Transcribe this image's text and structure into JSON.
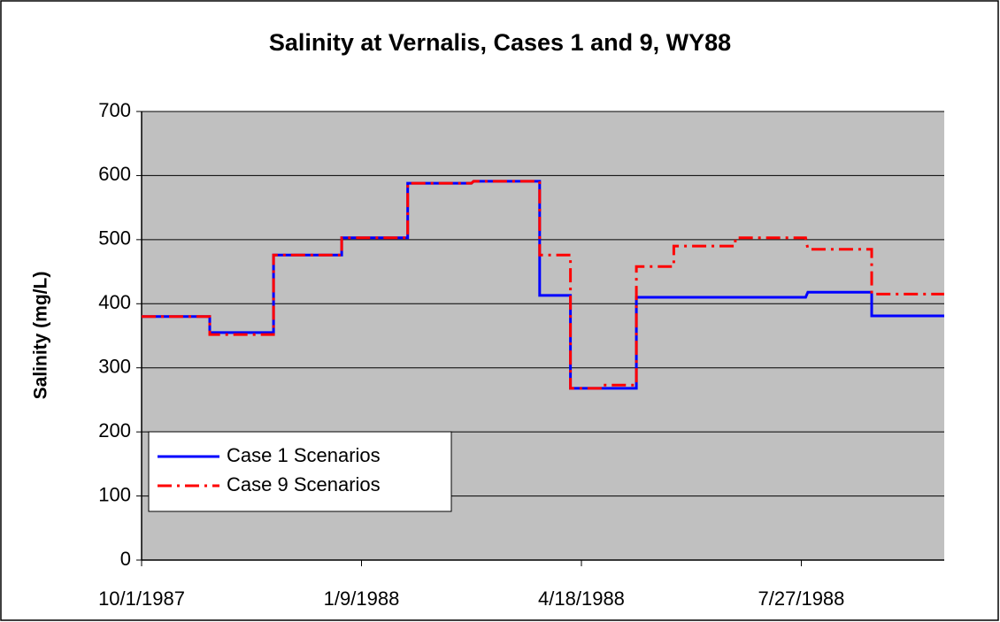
{
  "chart_data": {
    "type": "line",
    "title": "Salinity at Vernalis, Cases 1 and 9, WY88",
    "y_label": "Salinity (mg/L)",
    "xlim": [
      "10/1/1987",
      "9/30/1988"
    ],
    "xticks": [
      "10/1/1987",
      "1/9/1988",
      "4/18/1988",
      "7/27/1988"
    ],
    "ylim": [
      0,
      700
    ],
    "yticks": [
      0,
      100,
      200,
      300,
      400,
      500,
      600,
      700
    ],
    "grid": true,
    "plot_background": "#c0c0c0",
    "legend": "lower left",
    "series": [
      {
        "name": "Case 1 Scenarios",
        "color": "#0000ff",
        "dash": "solid",
        "x": [
          "10/1/1987",
          "11/1/1987",
          "11/1/1987",
          "11/30/1987",
          "11/30/1987",
          "12/31/1987",
          "12/31/1987",
          "1/30/1988",
          "1/30/1988",
          "2/28/1988",
          "2/29/1988",
          "3/30/1988",
          "3/30/1988",
          "4/13/1988",
          "4/13/1988",
          "5/13/1988",
          "5/13/1988",
          "7/29/1988",
          "7/30/1988",
          "8/28/1988",
          "8/28/1988",
          "9/30/1988"
        ],
        "values": [
          380,
          380,
          355,
          355,
          476,
          476,
          503,
          503,
          588,
          588,
          591,
          591,
          413,
          413,
          268,
          268,
          410,
          410,
          418,
          418,
          381,
          381
        ]
      },
      {
        "name": "Case 9 Scenarios",
        "color": "#ff0000",
        "dash": "dash-dot",
        "x": [
          "10/1/1987",
          "11/1/1987",
          "11/1/1987",
          "11/30/1987",
          "11/30/1987",
          "12/31/1987",
          "12/31/1987",
          "1/30/1988",
          "1/30/1988",
          "2/28/1988",
          "2/29/1988",
          "3/30/1988",
          "3/30/1988",
          "4/13/1988",
          "4/13/1988",
          "4/28/1988",
          "4/28/1988",
          "5/13/1988",
          "5/13/1988",
          "5/30/1988",
          "5/30/1988",
          "6/27/1988",
          "6/27/1988",
          "7/29/1988",
          "7/30/1988",
          "8/28/1988",
          "8/28/1988",
          "9/30/1988"
        ],
        "values": [
          380,
          380,
          352,
          352,
          476,
          476,
          503,
          503,
          588,
          588,
          591,
          591,
          476,
          476,
          268,
          268,
          273,
          273,
          458,
          458,
          490,
          490,
          503,
          503,
          485,
          485,
          415,
          415
        ]
      }
    ]
  }
}
